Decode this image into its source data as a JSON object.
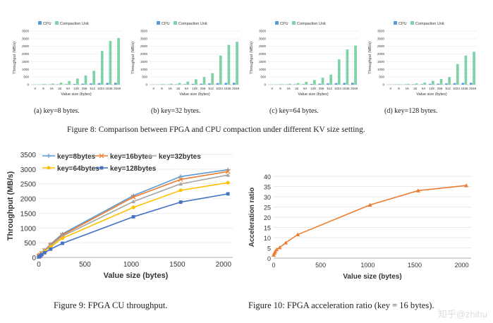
{
  "figure8": {
    "caption": "Figure 8: Comparison between FPGA and CPU compaction under different KV size setting.",
    "legend": [
      "CPU",
      "Compaction Unit"
    ],
    "xlabel": "Value size (bytes)",
    "ylabel": "Throughput (MB/s)",
    "colors": {
      "cpu": "#5b9bd5",
      "cu": "#7fd3a7"
    }
  },
  "figure9": {
    "caption": "Figure 9:  FPGA CU throughput."
  },
  "figure10": {
    "caption": "Figure 10:  FPGA acceleration ratio (key = 16 bytes)."
  },
  "watermark": "知乎@zhihu",
  "chart_data": [
    {
      "type": "bar",
      "subcaption": "(a) key=8 bytes.",
      "title": "",
      "categories": [
        "0",
        "8",
        "16",
        "32",
        "64",
        "128",
        "256",
        "512",
        "1024",
        "1536",
        "2048"
      ],
      "series": [
        {
          "name": "CPU",
          "values": [
            5,
            10,
            15,
            20,
            30,
            45,
            60,
            80,
            100,
            110,
            120
          ]
        },
        {
          "name": "Compaction Unit",
          "values": [
            15,
            40,
            70,
            130,
            230,
            400,
            600,
            900,
            2200,
            2850,
            3050
          ]
        }
      ],
      "xlabel": "Value size (bytes)",
      "ylabel": "Throughput (MB/s)",
      "yticks": [
        0,
        500,
        1000,
        1500,
        2000,
        2500,
        3000,
        3500
      ],
      "ylim": [
        0,
        3500
      ]
    },
    {
      "type": "bar",
      "subcaption": "(b) key=32 bytes.",
      "title": "",
      "categories": [
        "0",
        "8",
        "16",
        "32",
        "64",
        "128",
        "256",
        "512",
        "1024",
        "1536",
        "2048"
      ],
      "series": [
        {
          "name": "CPU",
          "values": [
            5,
            10,
            15,
            20,
            30,
            45,
            60,
            80,
            100,
            110,
            120
          ]
        },
        {
          "name": "Compaction Unit",
          "values": [
            15,
            35,
            60,
            110,
            200,
            350,
            500,
            750,
            1900,
            2600,
            2800
          ]
        }
      ],
      "xlabel": "Value size (bytes)",
      "ylabel": "Throughput (MB/s)",
      "yticks": [
        0,
        500,
        1000,
        1500,
        2000,
        2500,
        3000,
        3500
      ],
      "ylim": [
        0,
        3500
      ]
    },
    {
      "type": "bar",
      "subcaption": "(c) key=64 bytes.",
      "title": "",
      "categories": [
        "0",
        "8",
        "16",
        "32",
        "64",
        "128",
        "256",
        "512",
        "1024",
        "1536",
        "2048"
      ],
      "series": [
        {
          "name": "CPU",
          "values": [
            5,
            10,
            15,
            20,
            30,
            45,
            60,
            80,
            100,
            110,
            120
          ]
        },
        {
          "name": "Compaction Unit",
          "values": [
            15,
            30,
            55,
            100,
            180,
            300,
            450,
            650,
            1650,
            2300,
            2550
          ]
        }
      ],
      "xlabel": "Value size (bytes)",
      "ylabel": "Throughput (MB/s)",
      "yticks": [
        0,
        500,
        1000,
        1500,
        2000,
        2500,
        3000,
        3500
      ],
      "ylim": [
        0,
        3500
      ]
    },
    {
      "type": "bar",
      "subcaption": "(d) key=128 bytes.",
      "title": "",
      "categories": [
        "0",
        "8",
        "16",
        "32",
        "64",
        "128",
        "256",
        "512",
        "1024",
        "1536",
        "2048"
      ],
      "series": [
        {
          "name": "CPU",
          "values": [
            5,
            10,
            15,
            20,
            30,
            45,
            60,
            80,
            100,
            110,
            120
          ]
        },
        {
          "name": "Compaction Unit",
          "values": [
            10,
            25,
            45,
            80,
            140,
            240,
            370,
            500,
            1350,
            1900,
            2150
          ]
        }
      ],
      "xlabel": "Value size (bytes)",
      "ylabel": "Throughput (MB/s)",
      "yticks": [
        0,
        500,
        1000,
        1500,
        2000,
        2500,
        3000,
        3500
      ],
      "ylim": [
        0,
        3500
      ]
    },
    {
      "type": "line",
      "title": "",
      "xlabel": "Value size (bytes)",
      "ylabel": "Throughput (MB/s)",
      "xlim": [
        0,
        2100
      ],
      "ylim": [
        0,
        3500
      ],
      "xticks": [
        0,
        500,
        1000,
        1500,
        2000
      ],
      "yticks": [
        0,
        500,
        1000,
        1500,
        2000,
        2500,
        3000,
        3500
      ],
      "series": [
        {
          "name": "key=8bytes",
          "color": "#5b9bd5",
          "marker": "plus",
          "x": [
            0,
            8,
            16,
            32,
            64,
            128,
            256,
            1024,
            1536,
            2048
          ],
          "y": [
            30,
            60,
            90,
            150,
            250,
            450,
            800,
            2100,
            2750,
            2980
          ]
        },
        {
          "name": "key=16bytes",
          "color": "#ed7d31",
          "marker": "x",
          "x": [
            0,
            8,
            16,
            32,
            64,
            128,
            256,
            1024,
            1536,
            2048
          ],
          "y": [
            28,
            55,
            85,
            140,
            240,
            430,
            760,
            2050,
            2650,
            2920
          ]
        },
        {
          "name": "key=32bytes",
          "color": "#a5a5a5",
          "marker": "triangle",
          "x": [
            0,
            8,
            16,
            32,
            64,
            128,
            256,
            1024,
            1536,
            2048
          ],
          "y": [
            25,
            50,
            80,
            130,
            225,
            400,
            720,
            1900,
            2500,
            2800
          ]
        },
        {
          "name": "key=64bytes",
          "color": "#ffc000",
          "marker": "circle",
          "x": [
            0,
            8,
            16,
            32,
            64,
            128,
            256,
            1024,
            1536,
            2048
          ],
          "y": [
            22,
            45,
            70,
            115,
            200,
            360,
            650,
            1700,
            2280,
            2540
          ]
        },
        {
          "name": "key=128bytes",
          "color": "#4472c4",
          "marker": "square",
          "x": [
            0,
            8,
            16,
            32,
            64,
            128,
            256,
            1024,
            1536,
            2048
          ],
          "y": [
            18,
            35,
            55,
            95,
            160,
            280,
            480,
            1380,
            1880,
            2160
          ]
        }
      ]
    },
    {
      "type": "line",
      "title": "",
      "xlabel": "Value size (bytes)",
      "ylabel": "Acceleration ratio",
      "xlim": [
        0,
        2100
      ],
      "ylim": [
        0,
        40
      ],
      "xticks": [
        0,
        500,
        1000,
        1500,
        2000
      ],
      "yticks": [
        0,
        5,
        10,
        15,
        20,
        25,
        30,
        35,
        40
      ],
      "series": [
        {
          "name": "key=16bytes",
          "color": "#ed7d31",
          "marker": "triangle",
          "x": [
            0,
            8,
            16,
            32,
            64,
            128,
            256,
            1024,
            1536,
            2048
          ],
          "y": [
            1.5,
            2.5,
            3.2,
            4.2,
            5.2,
            7.5,
            11.5,
            26,
            33,
            35.5
          ]
        }
      ]
    }
  ]
}
